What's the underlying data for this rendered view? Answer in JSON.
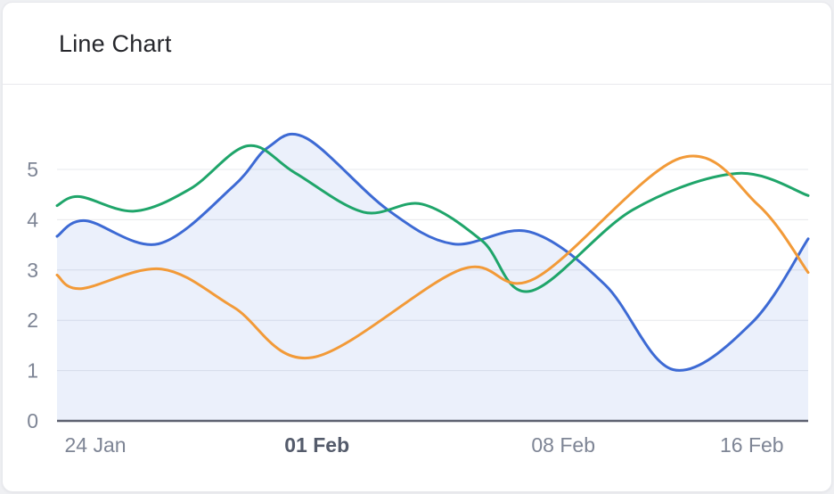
{
  "card": {
    "title": "Line Chart"
  },
  "chart_data": {
    "type": "line",
    "title": "Line Chart",
    "curve": "smooth",
    "grid": true,
    "legend": "none",
    "xlabel": "",
    "ylabel": "",
    "ylim": [
      0,
      6
    ],
    "y_ticks": [
      0,
      1,
      2,
      3,
      4,
      5
    ],
    "x_ticks": [
      {
        "label": "24 Jan",
        "pos": 0.051,
        "bold": false
      },
      {
        "label": "01 Feb",
        "pos": 0.346,
        "bold": true
      },
      {
        "label": "08 Feb",
        "pos": 0.674,
        "bold": false
      },
      {
        "label": "16 Feb",
        "pos": 0.925,
        "bold": false
      }
    ],
    "series": [
      {
        "name": "series-blue",
        "color": "#3d6ad4",
        "area": true,
        "area_color": "rgba(61,106,212,0.10)",
        "points": [
          [
            0.0,
            3.67
          ],
          [
            0.038,
            3.98
          ],
          [
            0.135,
            3.52
          ],
          [
            0.235,
            4.67
          ],
          [
            0.281,
            5.44
          ],
          [
            0.332,
            5.62
          ],
          [
            0.44,
            4.2
          ],
          [
            0.527,
            3.52
          ],
          [
            0.629,
            3.76
          ],
          [
            0.73,
            2.7
          ],
          [
            0.82,
            1.02
          ],
          [
            0.925,
            1.95
          ],
          [
            1.0,
            3.62
          ]
        ]
      },
      {
        "name": "series-green",
        "color": "#1fa56a",
        "area": false,
        "points": [
          [
            0.0,
            4.28
          ],
          [
            0.03,
            4.46
          ],
          [
            0.103,
            4.17
          ],
          [
            0.178,
            4.62
          ],
          [
            0.254,
            5.47
          ],
          [
            0.317,
            4.93
          ],
          [
            0.408,
            4.15
          ],
          [
            0.486,
            4.31
          ],
          [
            0.566,
            3.58
          ],
          [
            0.63,
            2.58
          ],
          [
            0.767,
            4.2
          ],
          [
            0.905,
            4.92
          ],
          [
            1.0,
            4.48
          ]
        ]
      },
      {
        "name": "series-orange",
        "color": "#f29a38",
        "area": false,
        "points": [
          [
            0.0,
            2.9
          ],
          [
            0.032,
            2.63
          ],
          [
            0.139,
            3.02
          ],
          [
            0.235,
            2.26
          ],
          [
            0.34,
            1.26
          ],
          [
            0.538,
            3.01
          ],
          [
            0.636,
            2.83
          ],
          [
            0.829,
            5.22
          ],
          [
            0.933,
            4.3
          ],
          [
            1.0,
            2.95
          ]
        ]
      }
    ],
    "colors": {
      "grid": "#e7e8ec",
      "axis": "#5d6170",
      "tick_label": "#7e8595",
      "tick_label_bold": "#545b6b"
    }
  }
}
